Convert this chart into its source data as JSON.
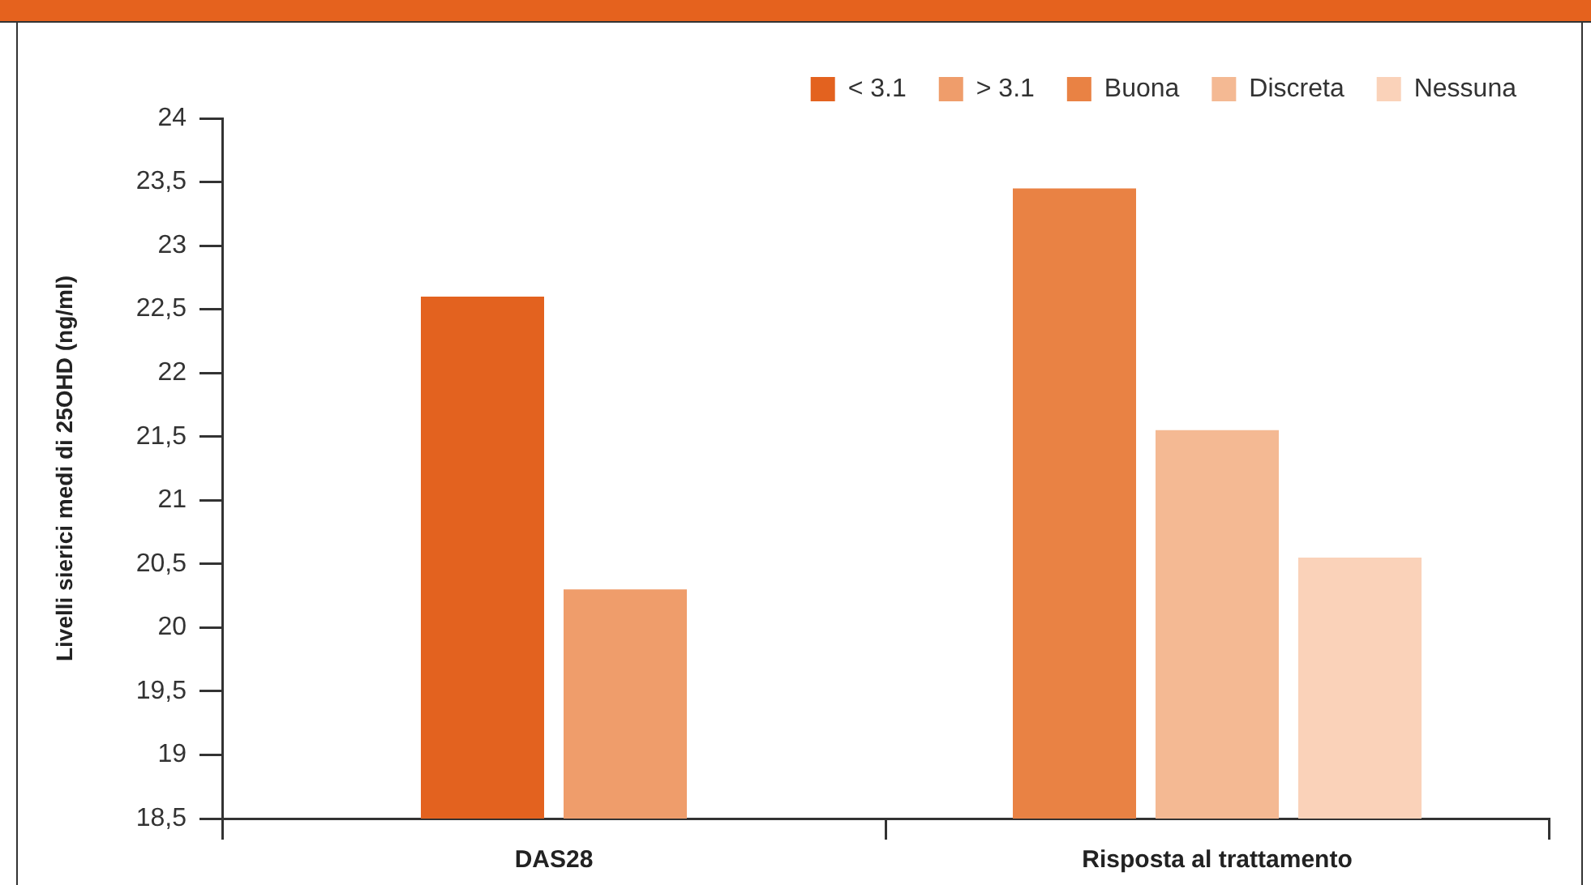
{
  "chart_data": {
    "type": "bar",
    "categories": [
      "DAS28",
      "Risposta al trattamento"
    ],
    "series": [
      {
        "name": "< 3.1",
        "color": "#e3621f",
        "values": [
          22.6,
          null
        ]
      },
      {
        "name": "> 3.1",
        "color": "#ef9d6b",
        "values": [
          20.3,
          null
        ]
      },
      {
        "name": "Buona",
        "color": "#e98244",
        "values": [
          null,
          23.45
        ]
      },
      {
        "name": "Discreta",
        "color": "#f4b993",
        "values": [
          null,
          21.55
        ]
      },
      {
        "name": "Nessuna",
        "color": "#fad2b9",
        "values": [
          null,
          20.55
        ]
      }
    ],
    "ylabel": "Livelli sierici medi di 25OHD (ng/ml)",
    "ylim": [
      18.5,
      24
    ],
    "yticks": [
      {
        "value": 18.5,
        "label": "18,5"
      },
      19,
      {
        "value": 19.5,
        "label": "19,5"
      },
      20,
      {
        "value": 20.5,
        "label": "20,5"
      },
      21,
      {
        "value": 21.5,
        "label": "21,5"
      },
      22,
      {
        "value": 22.5,
        "label": "22,5"
      },
      23,
      {
        "value": 23.5,
        "label": "23,5"
      },
      24
    ],
    "legend": "top right"
  }
}
